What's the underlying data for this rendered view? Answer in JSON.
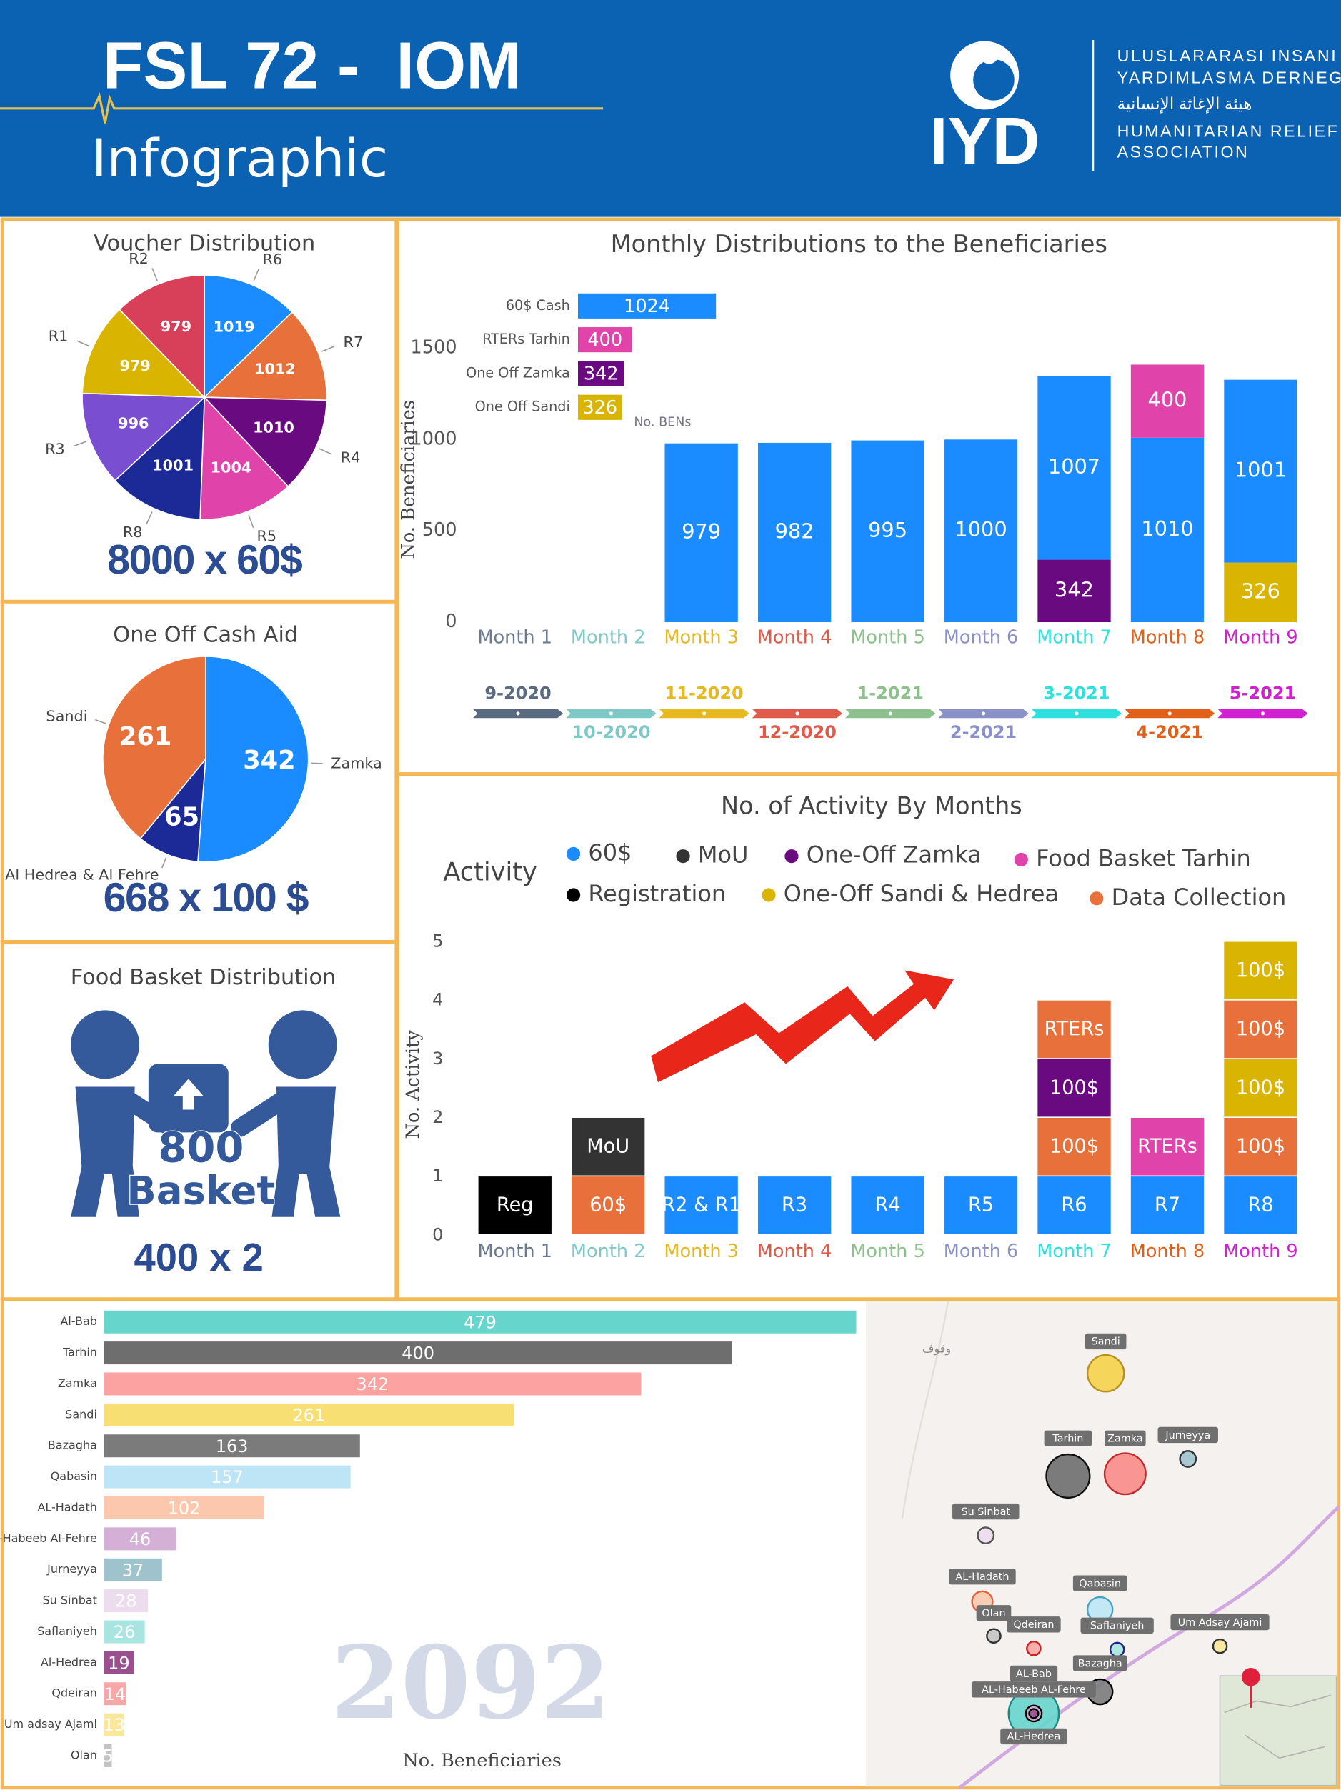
{
  "header": {
    "title": "FSL 72 -  IOM",
    "subtitle": "Infographic",
    "logo": "IYD",
    "org_lines": [
      "ULUSLARARASI INSANI",
      "YARDIMLASMA DERNEGI",
      "هيئة الإغاثة الإنسانية",
      "HUMANITARIAN RELIEF",
      "ASSOCIATION"
    ]
  },
  "chart_data": [
    {
      "type": "pie",
      "title": "Voucher Distribution",
      "categories": [
        "R6",
        "R7",
        "R4",
        "R5",
        "R8",
        "R3",
        "R1",
        "R2"
      ],
      "values": [
        1019,
        1012,
        1010,
        1004,
        1001,
        996,
        979,
        979
      ],
      "colors": [
        "#1a8cff",
        "#e8703a",
        "#6a0a80",
        "#e044aa",
        "#1b2a96",
        "#7a4ed0",
        "#d9b400",
        "#d8405a"
      ],
      "total_label": "8000 x 60$"
    },
    {
      "type": "pie",
      "title": "One Off Cash Aid",
      "categories": [
        "Zamka",
        "Al Hedrea & Al Fehre",
        "Sandi"
      ],
      "values": [
        342,
        65,
        261
      ],
      "colors": [
        "#1a8cff",
        "#1b2a96",
        "#e8703a"
      ],
      "total_label": "668 x 100 $"
    },
    {
      "type": "stacked-bar",
      "title": "Monthly Distributions to the Beneficiaries",
      "ylabel": "No. Beneficiaries",
      "annotation": "No. BENs",
      "categories": [
        "Month 1",
        "Month 2",
        "Month 3",
        "Month 4",
        "Month 5",
        "Month 6",
        "Month 7",
        "Month 8",
        "Month 9"
      ],
      "category_colors": [
        "#6b7a90",
        "#7fc8c8",
        "#e8b820",
        "#e05a4a",
        "#8cc08c",
        "#8a90c8",
        "#2ee0e0",
        "#e0601a",
        "#d020d0"
      ],
      "ylim": [
        0,
        1750
      ],
      "yticks": [
        0,
        500,
        1000,
        1500
      ],
      "series": [
        {
          "name": "One Off Zamka",
          "color": "#6a0a80",
          "total": 342,
          "values": [
            null,
            null,
            null,
            null,
            null,
            null,
            342,
            null,
            null
          ]
        },
        {
          "name": "One Off Sandi",
          "color": "#d9b400",
          "total": 326,
          "values": [
            null,
            null,
            null,
            null,
            null,
            null,
            null,
            null,
            326
          ]
        },
        {
          "name": "60$ Cash",
          "color": "#1a8cff",
          "total": 1024,
          "values": [
            null,
            null,
            979,
            982,
            995,
            1000,
            1007,
            1010,
            1001
          ]
        },
        {
          "name": "RTERs Tarhin",
          "color": "#e044aa",
          "total": 400,
          "values": [
            null,
            null,
            null,
            null,
            null,
            null,
            null,
            400,
            null
          ]
        }
      ],
      "timeline": [
        {
          "label": "9-2020",
          "color": "#5a6a80"
        },
        {
          "label": "10-2020",
          "color": "#7fc8c8"
        },
        {
          "label": "11-2020",
          "color": "#e8b820"
        },
        {
          "label": "12-2020",
          "color": "#e05a4a"
        },
        {
          "label": "1-2021",
          "color": "#8cc08c"
        },
        {
          "label": "2-2021",
          "color": "#8a90c8"
        },
        {
          "label": "3-2021",
          "color": "#2ee0e0"
        },
        {
          "label": "4-2021",
          "color": "#e0601a"
        },
        {
          "label": "5-2021",
          "color": "#d020d0"
        }
      ]
    },
    {
      "type": "activity-stack",
      "title": "No. of Activity By Months",
      "legend_title": "Activity",
      "ylabel": "No. Activity",
      "ylim": [
        0,
        5
      ],
      "yticks": [
        0,
        1,
        2,
        3,
        4,
        5
      ],
      "categories": [
        "Month 1",
        "Month 2",
        "Month 3",
        "Month 4",
        "Month 5",
        "Month 6",
        "Month 7",
        "Month 8",
        "Month 9"
      ],
      "category_colors": [
        "#6b7a90",
        "#7fc8c8",
        "#e8b820",
        "#e05a4a",
        "#8cc08c",
        "#8a90c8",
        "#2ee0e0",
        "#e0601a",
        "#d020d0"
      ],
      "activities": [
        {
          "name": "60$",
          "color": "#1a8cff"
        },
        {
          "name": "MoU",
          "color": "#333333"
        },
        {
          "name": "One-Off Zamka",
          "color": "#6a0a80"
        },
        {
          "name": "Food Basket Tarhin",
          "color": "#e044aa"
        },
        {
          "name": "Registration",
          "color": "#000000"
        },
        {
          "name": "One-Off Sandi & Hedrea",
          "color": "#d9b400"
        },
        {
          "name": "Data Collection",
          "color": "#e8703a"
        }
      ],
      "segments": [
        [
          {
            "activity": "Registration",
            "value": 1,
            "label": "Reg"
          }
        ],
        [
          {
            "activity": "Data Collection",
            "value": 1,
            "label": "60$"
          },
          {
            "activity": "MoU",
            "value": 1,
            "label": "MoU"
          }
        ],
        [
          {
            "activity": "60$",
            "value": 1,
            "label": "R2 & R1"
          }
        ],
        [
          {
            "activity": "60$",
            "value": 1,
            "label": "R3"
          }
        ],
        [
          {
            "activity": "60$",
            "value": 1,
            "label": "R4"
          }
        ],
        [
          {
            "activity": "60$",
            "value": 1,
            "label": "R5"
          }
        ],
        [
          {
            "activity": "60$",
            "value": 1,
            "label": "R6"
          },
          {
            "activity": "Data Collection",
            "value": 1,
            "label": "100$"
          },
          {
            "activity": "One-Off Zamka",
            "value": 1,
            "label": "100$"
          },
          {
            "activity": "Data Collection",
            "value": 1,
            "label": "RTERs"
          }
        ],
        [
          {
            "activity": "60$",
            "value": 1,
            "label": "R7"
          },
          {
            "activity": "Food Basket Tarhin",
            "value": 1,
            "label": "RTERs"
          }
        ],
        [
          {
            "activity": "60$",
            "value": 1,
            "label": "R8"
          },
          {
            "activity": "Data Collection",
            "value": 1,
            "label": "100$"
          },
          {
            "activity": "One-Off Sandi & Hedrea",
            "value": 1,
            "label": "100$"
          },
          {
            "activity": "Data Collection",
            "value": 1,
            "label": "100$"
          },
          {
            "activity": "One-Off Sandi & Hedrea",
            "value": 1,
            "label": "100$"
          }
        ]
      ]
    },
    {
      "type": "hbar",
      "xlabel": "No. Beneficiaries",
      "total_label": "2092",
      "xlim": [
        0,
        480
      ],
      "categories": [
        "Al-Bab",
        "Tarhin",
        "Zamka",
        "Sandi",
        "Bazagha",
        "Qabasin",
        "AL-Hadath",
        "Al-Habeeb Al-Fehre",
        "Jurneyya",
        "Su Sinbat",
        "Saflaniyeh",
        "Al-Hedrea",
        "Qdeiran",
        "Um adsay Ajami",
        "Olan"
      ],
      "values": [
        479,
        400,
        342,
        261,
        163,
        157,
        102,
        46,
        37,
        28,
        26,
        19,
        14,
        13,
        5
      ],
      "colors": [
        "#66d5cc",
        "#6e6e6e",
        "#fca2a0",
        "#f7df73",
        "#7b7b7b",
        "#bde5f5",
        "#fcc8ad",
        "#d4b0d6",
        "#9fc3cc",
        "#ecdced",
        "#a8e5e0",
        "#9a4f8e",
        "#f7a7a5",
        "#f9e79a",
        "#c4c4c4"
      ]
    }
  ],
  "food_basket": {
    "title": "Food Basket Distribution",
    "count": "800",
    "unit": "Basket",
    "total_label": "400 x 2"
  },
  "map": {
    "watermark": "وقوف",
    "places": [
      "Sandi",
      "Tarhin",
      "Zamka",
      "Jurneyya",
      "Su Sinbat",
      "AL-Hadath",
      "Qabasin",
      "Olan",
      "Qdeiran",
      "Saflaniyeh",
      "Um Adsay Ajami",
      "Bazagha",
      "AL-Bab",
      "AL-Habeeb AL-Fehre",
      "AL-Hedrea"
    ]
  }
}
